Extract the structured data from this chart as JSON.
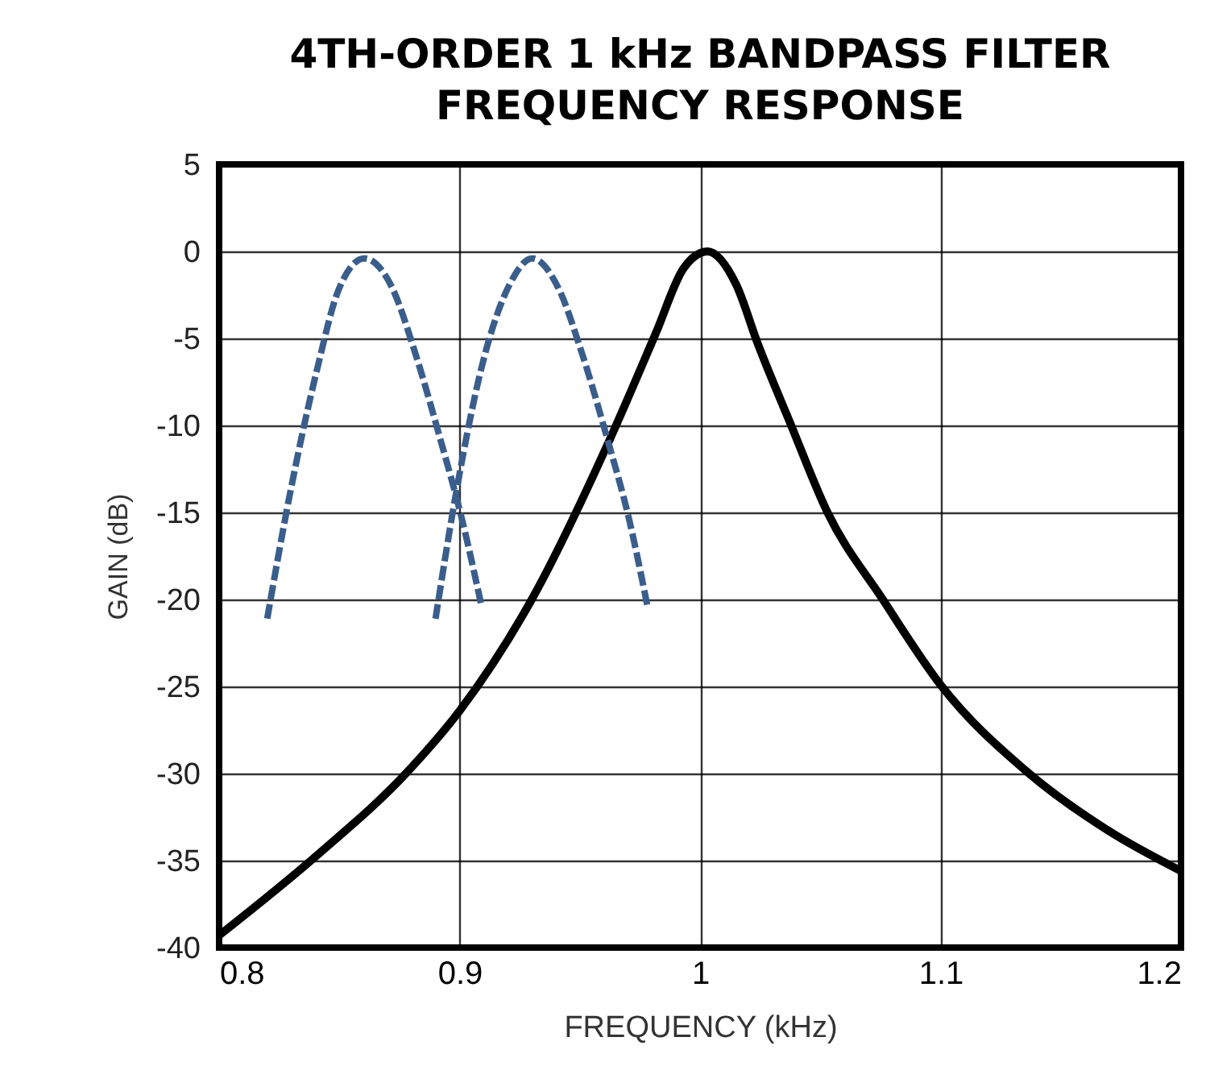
{
  "chart_data": {
    "type": "line",
    "title": "4TH-ORDER 1  kHz BANDPASS FILTER\nFREQUENCY RESPONSE",
    "xlabel": "FREQUENCY (kHz)",
    "ylabel": "GAIN (dB)",
    "xlim": [
      0.8,
      1.2
    ],
    "xticks": [
      0.8,
      0.9,
      1,
      1.1,
      1.2
    ],
    "ylim": [
      -40,
      5
    ],
    "yticks": [
      5,
      0,
      -5,
      -10,
      -15,
      -20,
      -25,
      -30,
      -35,
      -40
    ],
    "grid": true,
    "marker": "none",
    "series": [
      {
        "color": "#000000",
        "line_style": "solid",
        "x": [
          0.8,
          0.8407,
          0.879,
          0.9,
          0.93,
          0.9615,
          0.9816,
          0.993,
          1.0,
          1.003,
          1.015,
          1.024,
          1.0376,
          1.053,
          1.076,
          1.1,
          1.136,
          1.17,
          1.2
        ],
        "values": [
          -39.3,
          -34.7,
          -29.8,
          -26.4,
          -20,
          -11.1,
          -4.7,
          -1,
          -0.1,
          0,
          -1.9,
          -5.3,
          -9.9,
          -15,
          -20,
          -24.9,
          -29.9,
          -33.3,
          -35.6
        ]
      },
      {
        "color": "#3a5e8c",
        "line_style": "dashed",
        "x": [
          0.82,
          0.8295,
          0.8407,
          0.8497,
          0.8604,
          0.872,
          0.881,
          0.892,
          0.901,
          0.909
        ],
        "values": [
          -21.1,
          -13.9,
          -6.8,
          -2.2,
          -0.4,
          -2.1,
          -5.6,
          -10.8,
          -15.4,
          -20.3
        ]
      },
      {
        "color": "#3a5e8c",
        "line_style": "dashed",
        "x": [
          0.89,
          0.8989,
          0.91,
          0.9208,
          0.9302,
          0.9414,
          0.9503,
          0.9615,
          0.9705,
          0.978
        ],
        "values": [
          -21.1,
          -13.6,
          -6.2,
          -1.9,
          -0.4,
          -2.2,
          -5.6,
          -10.8,
          -15.4,
          -20.3
        ]
      }
    ]
  }
}
